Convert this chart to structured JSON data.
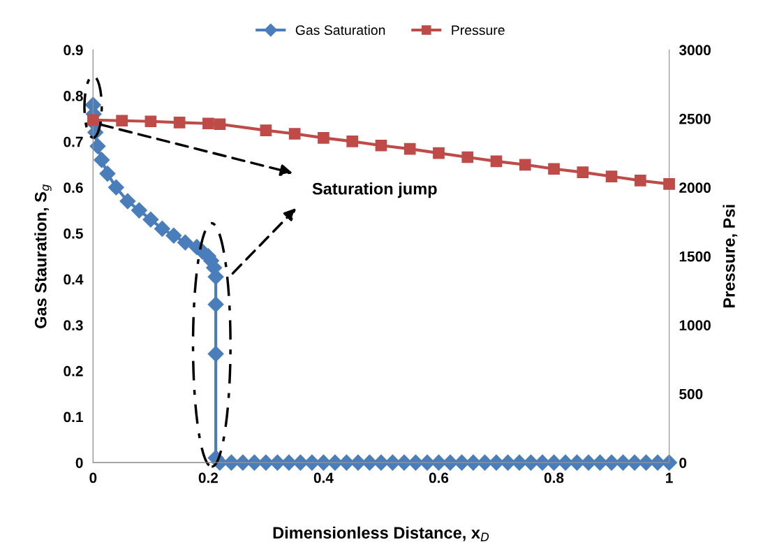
{
  "chart_data": {
    "type": "line",
    "xlabel": "Dimensionless Distance, x$_{D}$",
    "ylabel": "Gas Stauration, S$_{g}$",
    "y2label": "Pressure, Psi",
    "xlim": [
      0,
      1
    ],
    "xticks": [
      0,
      0.2,
      0.4,
      0.6,
      0.8,
      1
    ],
    "ylim": [
      0,
      0.9
    ],
    "yticks": [
      0,
      0.1,
      0.2,
      0.3,
      0.4,
      0.5,
      0.6,
      0.7,
      0.8,
      0.9
    ],
    "y2lim": [
      0,
      3000
    ],
    "y2ticks": [
      0,
      500,
      1000,
      1500,
      2000,
      2500,
      3000
    ],
    "grid": false,
    "legend": "top",
    "line_style": "solid",
    "annotations": [
      "Saturation jump"
    ],
    "series": [
      {
        "name": "Gas Saturation",
        "color": "#4a7ebb",
        "marker": "diamond",
        "x": [
          0,
          0.001,
          0.002,
          0.004,
          0.008,
          0.015,
          0.025,
          0.04,
          0.06,
          0.08,
          0.1,
          0.12,
          0.14,
          0.16,
          0.18,
          0.19,
          0.2,
          0.205,
          0.21,
          0.213,
          0.213,
          0.213,
          0.213,
          0.22,
          0.24,
          0.26,
          0.28,
          0.3,
          0.32,
          0.34,
          0.36,
          0.38,
          0.4,
          0.42,
          0.44,
          0.46,
          0.48,
          0.5,
          0.52,
          0.54,
          0.56,
          0.58,
          0.6,
          0.62,
          0.64,
          0.66,
          0.68,
          0.7,
          0.72,
          0.74,
          0.76,
          0.78,
          0.8,
          0.82,
          0.84,
          0.86,
          0.88,
          0.9,
          0.92,
          0.94,
          0.96,
          0.98,
          1
        ],
        "values": [
          0.78,
          0.76,
          0.74,
          0.72,
          0.69,
          0.66,
          0.63,
          0.6,
          0.57,
          0.55,
          0.53,
          0.51,
          0.495,
          0.48,
          0.47,
          0.46,
          0.45,
          0.44,
          0.425,
          0.405,
          0.345,
          0.237,
          0.01,
          0,
          0,
          0,
          0,
          0,
          0,
          0,
          0,
          0,
          0,
          0,
          0,
          0,
          0,
          0,
          0,
          0,
          0,
          0,
          0,
          0,
          0,
          0,
          0,
          0,
          0,
          0,
          0,
          0,
          0,
          0,
          0,
          0,
          0,
          0,
          0,
          0,
          0,
          0,
          0
        ]
      },
      {
        "name": "Pressure",
        "color": "#be4b48",
        "marker": "square",
        "axis": "y2",
        "x": [
          0,
          0.05,
          0.1,
          0.15,
          0.2,
          0.22,
          0.3,
          0.35,
          0.4,
          0.45,
          0.5,
          0.55,
          0.6,
          0.65,
          0.7,
          0.75,
          0.8,
          0.85,
          0.9,
          0.95,
          1
        ],
        "values": [
          2490,
          2485,
          2480,
          2472,
          2465,
          2460,
          2415,
          2390,
          2360,
          2335,
          2305,
          2280,
          2250,
          2220,
          2190,
          2165,
          2135,
          2110,
          2080,
          2050,
          2025
        ]
      }
    ]
  }
}
